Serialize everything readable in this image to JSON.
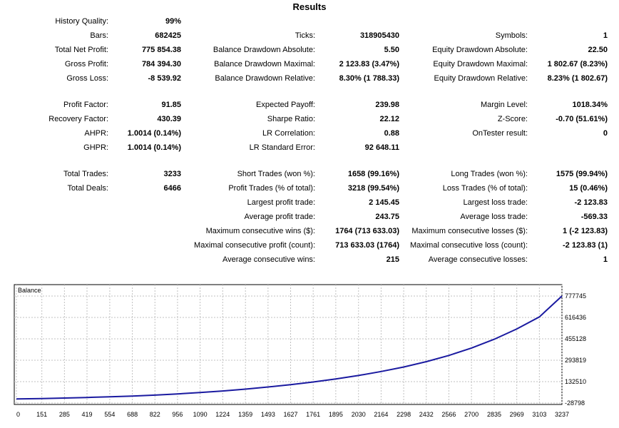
{
  "report": {
    "title": "Results",
    "rows": [
      [
        {
          "label": "History Quality:",
          "value": "99%"
        },
        null,
        null
      ],
      [
        {
          "label": "Bars:",
          "value": "682425"
        },
        {
          "label": "Ticks:",
          "value": "318905430"
        },
        {
          "label": "Symbols:",
          "value": "1"
        }
      ],
      [
        {
          "label": "Total Net Profit:",
          "value": "775 854.38"
        },
        {
          "label": "Balance Drawdown Absolute:",
          "value": "5.50"
        },
        {
          "label": "Equity Drawdown Absolute:",
          "value": "22.50"
        }
      ],
      [
        {
          "label": "Gross Profit:",
          "value": "784 394.30"
        },
        {
          "label": "Balance Drawdown Maximal:",
          "value": "2 123.83 (3.47%)"
        },
        {
          "label": "Equity Drawdown Maximal:",
          "value": "1 802.67 (8.23%)"
        }
      ],
      [
        {
          "label": "Gross Loss:",
          "value": "-8 539.92"
        },
        {
          "label": "Balance Drawdown Relative:",
          "value": "8.30% (1 788.33)"
        },
        {
          "label": "Equity Drawdown Relative:",
          "value": "8.23% (1 802.67)"
        }
      ],
      null,
      [
        {
          "label": "Profit Factor:",
          "value": "91.85"
        },
        {
          "label": "Expected Payoff:",
          "value": "239.98"
        },
        {
          "label": "Margin Level:",
          "value": "1018.34%"
        }
      ],
      [
        {
          "label": "Recovery Factor:",
          "value": "430.39"
        },
        {
          "label": "Sharpe Ratio:",
          "value": "22.12"
        },
        {
          "label": "Z-Score:",
          "value": "-0.70 (51.61%)"
        }
      ],
      [
        {
          "label": "AHPR:",
          "value": "1.0014 (0.14%)"
        },
        {
          "label": "LR Correlation:",
          "value": "0.88"
        },
        {
          "label": "OnTester result:",
          "value": "0"
        }
      ],
      [
        {
          "label": "GHPR:",
          "value": "1.0014 (0.14%)"
        },
        {
          "label": "LR Standard Error:",
          "value": "92 648.11"
        },
        null
      ],
      null,
      [
        {
          "label": "Total Trades:",
          "value": "3233"
        },
        {
          "label": "Short Trades (won %):",
          "value": "1658 (99.16%)"
        },
        {
          "label": "Long Trades (won %):",
          "value": "1575 (99.94%)"
        }
      ],
      [
        {
          "label": "Total Deals:",
          "value": "6466"
        },
        {
          "label": "Profit Trades (% of total):",
          "value": "3218 (99.54%)"
        },
        {
          "label": "Loss Trades (% of total):",
          "value": "15 (0.46%)"
        }
      ],
      [
        null,
        {
          "label": "Largest profit trade:",
          "value": "2 145.45"
        },
        {
          "label": "Largest loss trade:",
          "value": "-2 123.83"
        }
      ],
      [
        null,
        {
          "label": "Average profit trade:",
          "value": "243.75"
        },
        {
          "label": "Average loss trade:",
          "value": "-569.33"
        }
      ],
      [
        null,
        {
          "label": "Maximum consecutive wins ($):",
          "value": "1764 (713 633.03)"
        },
        {
          "label": "Maximum consecutive losses ($):",
          "value": "1 (-2 123.83)"
        }
      ],
      [
        null,
        {
          "label": "Maximal consecutive profit (count):",
          "value": "713 633.03 (1764)"
        },
        {
          "label": "Maximal consecutive loss (count):",
          "value": "-2 123.83 (1)"
        }
      ],
      [
        null,
        {
          "label": "Average consecutive wins:",
          "value": "215"
        },
        {
          "label": "Average consecutive losses:",
          "value": "1"
        }
      ]
    ]
  },
  "chart_data": {
    "type": "line",
    "title": "Balance",
    "x_ticks": [
      "0",
      "151",
      "285",
      "419",
      "554",
      "688",
      "822",
      "956",
      "1090",
      "1224",
      "1359",
      "1493",
      "1627",
      "1761",
      "1895",
      "2030",
      "2164",
      "2298",
      "2432",
      "2566",
      "2700",
      "2835",
      "2969",
      "3103",
      "3237"
    ],
    "y_ticks": [
      "777745",
      "616436",
      "455128",
      "293819",
      "132510",
      "-28798"
    ],
    "xlim": [
      0,
      3237
    ],
    "ylim": [
      -28798,
      777745
    ],
    "grid": true,
    "line_color": "#1a1aa0",
    "series": [
      {
        "x": [
          0,
          151,
          285,
          419,
          554,
          688,
          822,
          956,
          1090,
          1224,
          1359,
          1493,
          1627,
          1761,
          1895,
          2030,
          2164,
          2298,
          2432,
          2566,
          2700,
          2835,
          2969,
          3103,
          3237
        ],
        "values": [
          2000,
          5000,
          9000,
          13000,
          18000,
          24000,
          31000,
          40000,
          50000,
          62000,
          76000,
          92000,
          110000,
          130000,
          153000,
          179000,
          209000,
          243000,
          283000,
          330000,
          386000,
          452000,
          530000,
          620000,
          777745
        ]
      }
    ]
  }
}
